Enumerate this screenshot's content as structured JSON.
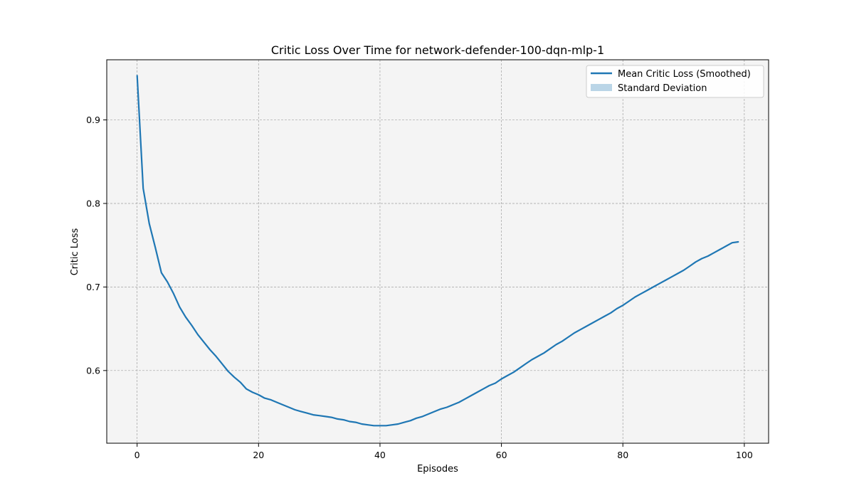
{
  "chart_data": {
    "type": "line",
    "title": "Critic Loss Over Time for network-defender-100-dqn-mlp-1",
    "xlabel": "Episodes",
    "ylabel": "Critic Loss",
    "xlim": [
      -5,
      104
    ],
    "ylim": [
      0.513,
      0.972
    ],
    "xticks": [
      0,
      20,
      40,
      60,
      80,
      100
    ],
    "yticks": [
      0.6,
      0.7,
      0.8,
      0.9
    ],
    "ytick_labels": [
      "0.6",
      "0.7",
      "0.8",
      "0.9"
    ],
    "grid": true,
    "legend_position": "top-right",
    "colors": {
      "line": "#1f77b4",
      "band": "#1f77b4",
      "plot_background": "#f4f4f4",
      "grid": "#a0a0a0"
    },
    "series": [
      {
        "name": "Mean Critic Loss (Smoothed)",
        "x": [
          0,
          1,
          2,
          3,
          4,
          5,
          6,
          7,
          8,
          9,
          10,
          11,
          12,
          13,
          14,
          15,
          16,
          17,
          18,
          19,
          20,
          21,
          22,
          23,
          24,
          25,
          26,
          27,
          28,
          29,
          30,
          31,
          32,
          33,
          34,
          35,
          36,
          37,
          38,
          39,
          40,
          41,
          42,
          43,
          44,
          45,
          46,
          47,
          48,
          49,
          50,
          51,
          52,
          53,
          54,
          55,
          56,
          57,
          58,
          59,
          60,
          61,
          62,
          63,
          64,
          65,
          66,
          67,
          68,
          69,
          70,
          71,
          72,
          73,
          74,
          75,
          76,
          77,
          78,
          79,
          80,
          81,
          82,
          83,
          84,
          85,
          86,
          87,
          88,
          89,
          90,
          91,
          92,
          93,
          94,
          95,
          96,
          97,
          98,
          99
        ],
        "values": [
          0.953,
          0.818,
          0.776,
          0.747,
          0.717,
          0.706,
          0.692,
          0.676,
          0.664,
          0.654,
          0.643,
          0.634,
          0.625,
          0.617,
          0.608,
          0.599,
          0.592,
          0.586,
          0.578,
          0.574,
          0.571,
          0.567,
          0.565,
          0.562,
          0.559,
          0.556,
          0.553,
          0.551,
          0.549,
          0.547,
          0.546,
          0.545,
          0.544,
          0.542,
          0.541,
          0.539,
          0.538,
          0.536,
          0.535,
          0.534,
          0.534,
          0.534,
          0.535,
          0.536,
          0.538,
          0.54,
          0.543,
          0.545,
          0.548,
          0.551,
          0.554,
          0.556,
          0.559,
          0.562,
          0.566,
          0.57,
          0.574,
          0.578,
          0.582,
          0.585,
          0.59,
          0.594,
          0.598,
          0.603,
          0.608,
          0.613,
          0.617,
          0.621,
          0.626,
          0.631,
          0.635,
          0.64,
          0.645,
          0.649,
          0.653,
          0.657,
          0.661,
          0.665,
          0.669,
          0.674,
          0.678,
          0.683,
          0.688,
          0.692,
          0.696,
          0.7,
          0.704,
          0.708,
          0.712,
          0.716,
          0.72,
          0.725,
          0.73,
          0.734,
          0.737,
          0.741,
          0.745,
          0.749,
          0.753,
          0.754
        ]
      },
      {
        "name": "Standard Deviation",
        "band": true
      }
    ]
  }
}
